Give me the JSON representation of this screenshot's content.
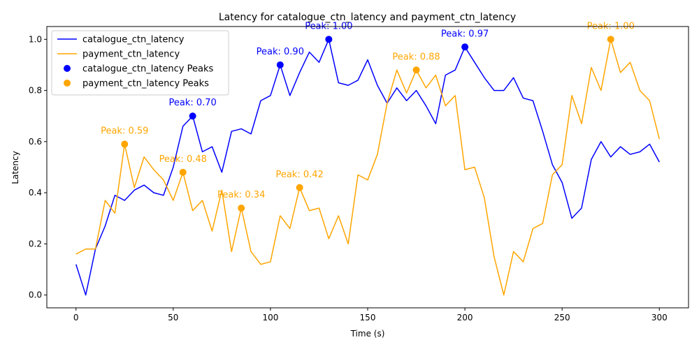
{
  "chart_data": {
    "type": "line",
    "title": "Latency for catalogue_ctn_latency and payment_ctn_latency",
    "xlabel": "Time (s)",
    "ylabel": "Latency",
    "xlim": [
      -15,
      315
    ],
    "ylim": [
      -0.05,
      1.05
    ],
    "xticks": [
      0,
      50,
      100,
      150,
      200,
      250,
      300
    ],
    "yticks": [
      0.0,
      0.2,
      0.4,
      0.6,
      0.8,
      1.0
    ],
    "xtick_labels": [
      "0",
      "50",
      "100",
      "150",
      "200",
      "250",
      "300"
    ],
    "ytick_labels": [
      "0.0",
      "0.2",
      "0.4",
      "0.6",
      "0.8",
      "1.0"
    ],
    "grid": false,
    "legend_position": "top-left",
    "x": [
      0,
      5,
      10,
      15,
      20,
      25,
      30,
      35,
      40,
      45,
      50,
      55,
      60,
      65,
      70,
      75,
      80,
      85,
      90,
      95,
      100,
      105,
      110,
      115,
      120,
      125,
      130,
      135,
      140,
      145,
      150,
      155,
      160,
      165,
      170,
      175,
      180,
      185,
      190,
      195,
      200,
      205,
      210,
      215,
      220,
      225,
      230,
      235,
      240,
      245,
      250,
      255,
      260,
      265,
      270,
      275,
      280,
      285,
      290,
      295,
      300
    ],
    "series": [
      {
        "name": "catalogue_ctn_latency",
        "color": "#0000ff",
        "values": [
          0.12,
          0.0,
          0.18,
          0.27,
          0.39,
          0.37,
          0.41,
          0.43,
          0.4,
          0.39,
          0.5,
          0.66,
          0.7,
          0.56,
          0.58,
          0.48,
          0.64,
          0.65,
          0.63,
          0.76,
          0.78,
          0.9,
          0.78,
          0.87,
          0.95,
          0.91,
          1.0,
          0.83,
          0.82,
          0.84,
          0.92,
          0.82,
          0.75,
          0.81,
          0.76,
          0.8,
          0.74,
          0.67,
          0.86,
          0.88,
          0.97,
          0.91,
          0.85,
          0.8,
          0.8,
          0.85,
          0.77,
          0.76,
          0.64,
          0.51,
          0.44,
          0.3,
          0.34,
          0.53,
          0.6,
          0.54,
          0.58,
          0.55,
          0.56,
          0.59,
          0.52
        ]
      },
      {
        "name": "payment_ctn_latency",
        "color": "#ffa500",
        "values": [
          0.16,
          0.18,
          0.18,
          0.37,
          0.32,
          0.59,
          0.42,
          0.54,
          0.49,
          0.45,
          0.37,
          0.48,
          0.33,
          0.37,
          0.25,
          0.41,
          0.17,
          0.34,
          0.17,
          0.12,
          0.13,
          0.31,
          0.26,
          0.42,
          0.33,
          0.34,
          0.22,
          0.31,
          0.2,
          0.47,
          0.45,
          0.55,
          0.75,
          0.88,
          0.79,
          0.88,
          0.81,
          0.86,
          0.74,
          0.78,
          0.49,
          0.5,
          0.38,
          0.15,
          0.0,
          0.17,
          0.13,
          0.26,
          0.28,
          0.47,
          0.51,
          0.78,
          0.67,
          0.89,
          0.8,
          1.0,
          0.87,
          0.91,
          0.8,
          0.76,
          0.61
        ]
      }
    ],
    "peaks": [
      {
        "name": "catalogue_ctn_latency Peaks",
        "color": "#0000ff",
        "points": [
          {
            "x": 60,
            "y": 0.7,
            "label": "Peak: 0.70"
          },
          {
            "x": 105,
            "y": 0.9,
            "label": "Peak: 0.90"
          },
          {
            "x": 130,
            "y": 1.0,
            "label": "Peak: 1.00"
          },
          {
            "x": 200,
            "y": 0.97,
            "label": "Peak: 0.97"
          }
        ]
      },
      {
        "name": "payment_ctn_latency Peaks",
        "color": "#ffa500",
        "points": [
          {
            "x": 25,
            "y": 0.59,
            "label": "Peak: 0.59"
          },
          {
            "x": 55,
            "y": 0.48,
            "label": "Peak: 0.48"
          },
          {
            "x": 85,
            "y": 0.34,
            "label": "Peak: 0.34"
          },
          {
            "x": 115,
            "y": 0.42,
            "label": "Peak: 0.42"
          },
          {
            "x": 175,
            "y": 0.88,
            "label": "Peak: 0.88"
          },
          {
            "x": 275,
            "y": 1.0,
            "label": "Peak: 1.00"
          }
        ]
      }
    ]
  }
}
